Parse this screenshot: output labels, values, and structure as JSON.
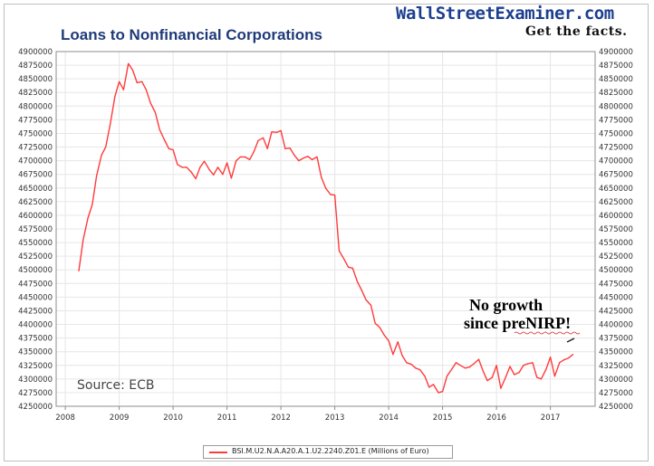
{
  "header": {
    "title": "Loans to Nonfinancial Corporations",
    "brand": "WallStreetExaminer.com",
    "tagline": "Get the facts."
  },
  "source_note": "Source: ECB",
  "annotation": {
    "line1": "No growth",
    "line2": "since preNIRP!"
  },
  "legend_label": "BSI.M.U2.N.A.A20.A.1.U2.2240.Z01.E (Millions of Euro)",
  "colors": {
    "series": "#ff3b3b",
    "title": "#1f3a7a",
    "brand": "#1c3f8f",
    "grid": "#e6e6e6"
  },
  "chart_data": {
    "type": "line",
    "title": "Loans to Nonfinancial Corporations",
    "xlabel": "",
    "ylabel": "",
    "xlim": [
      2007.83,
      2017.83
    ],
    "ylim": [
      4250000,
      4900000
    ],
    "x_ticks": [
      "2008",
      "2009",
      "2010",
      "2011",
      "2012",
      "2013",
      "2014",
      "2015",
      "2016",
      "2017"
    ],
    "y_ticks": [
      "4250000",
      "4275000",
      "4300000",
      "4325000",
      "4350000",
      "4375000",
      "4400000",
      "4425000",
      "4450000",
      "4475000",
      "4500000",
      "4525000",
      "4550000",
      "4575000",
      "4600000",
      "4625000",
      "4650000",
      "4675000",
      "4700000",
      "4725000",
      "4750000",
      "4775000",
      "4800000",
      "4825000",
      "4850000",
      "4875000",
      "4900000"
    ],
    "grid": true,
    "legend": "bottom-center",
    "series": [
      {
        "name": "BSI.M.U2.N.A.A20.A.1.U2.2240.Z01.E (Millions of Euro)",
        "x": [
          2008.25,
          2008.33,
          2008.42,
          2008.5,
          2008.58,
          2008.67,
          2008.75,
          2008.83,
          2008.92,
          2009.0,
          2009.08,
          2009.17,
          2009.25,
          2009.33,
          2009.42,
          2009.5,
          2009.58,
          2009.67,
          2009.75,
          2009.83,
          2009.92,
          2010.0,
          2010.08,
          2010.17,
          2010.25,
          2010.33,
          2010.42,
          2010.5,
          2010.58,
          2010.67,
          2010.75,
          2010.83,
          2010.92,
          2011.0,
          2011.08,
          2011.17,
          2011.25,
          2011.33,
          2011.42,
          2011.5,
          2011.58,
          2011.67,
          2011.75,
          2011.83,
          2011.92,
          2012.0,
          2012.08,
          2012.17,
          2012.25,
          2012.33,
          2012.42,
          2012.5,
          2012.58,
          2012.67,
          2012.75,
          2012.83,
          2012.92,
          2013.0,
          2013.08,
          2013.17,
          2013.25,
          2013.33,
          2013.42,
          2013.5,
          2013.58,
          2013.67,
          2013.75,
          2013.83,
          2013.92,
          2014.0,
          2014.08,
          2014.17,
          2014.25,
          2014.33,
          2014.42,
          2014.5,
          2014.58,
          2014.67,
          2014.75,
          2014.83,
          2014.92,
          2015.0,
          2015.08,
          2015.17,
          2015.25,
          2015.33,
          2015.42,
          2015.5,
          2015.58,
          2015.67,
          2015.75,
          2015.83,
          2015.92,
          2016.0,
          2016.08,
          2016.17,
          2016.25,
          2016.33,
          2016.42,
          2016.5,
          2016.58,
          2016.67,
          2016.75,
          2016.83,
          2016.92,
          2017.0,
          2017.08,
          2017.17,
          2017.25,
          2017.33,
          2017.42
        ],
        "values": [
          4498000,
          4555000,
          4595000,
          4620000,
          4672000,
          4710000,
          4725000,
          4765000,
          4818000,
          4845000,
          4830000,
          4878000,
          4866000,
          4843000,
          4845000,
          4830000,
          4806000,
          4788000,
          4757000,
          4740000,
          4722000,
          4720000,
          4693000,
          4688000,
          4688000,
          4680000,
          4667000,
          4688000,
          4699000,
          4684000,
          4674000,
          4688000,
          4675000,
          4696000,
          4668000,
          4700000,
          4707000,
          4707000,
          4702000,
          4717000,
          4737000,
          4742000,
          4722000,
          4753000,
          4752000,
          4755000,
          4722000,
          4723000,
          4710000,
          4700000,
          4705000,
          4708000,
          4702000,
          4707000,
          4670000,
          4650000,
          4638000,
          4637000,
          4535000,
          4520000,
          4505000,
          4503000,
          4478000,
          4462000,
          4445000,
          4435000,
          4402000,
          4395000,
          4380000,
          4370000,
          4345000,
          4368000,
          4343000,
          4330000,
          4327000,
          4320000,
          4317000,
          4305000,
          4285000,
          4290000,
          4275000,
          4277000,
          4305000,
          4318000,
          4330000,
          4325000,
          4320000,
          4322000,
          4328000,
          4336000,
          4315000,
          4297000,
          4303000,
          4325000,
          4283000,
          4303000,
          4323000,
          4308000,
          4312000,
          4325000,
          4328000,
          4330000,
          4303000,
          4300000,
          4318000,
          4340000,
          4305000,
          4330000,
          4335000,
          4338000,
          4345000
        ]
      }
    ]
  }
}
